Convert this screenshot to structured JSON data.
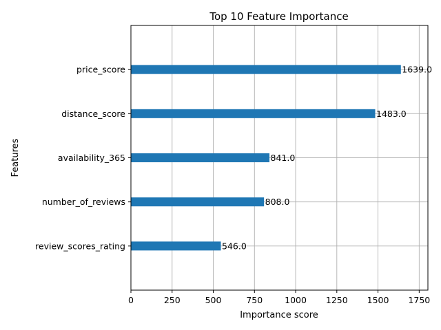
{
  "chart_data": {
    "type": "bar",
    "orientation": "horizontal",
    "title": "Top 10 Feature Importance",
    "xlabel": "Importance score",
    "ylabel": "Features",
    "categories": [
      "review_scores_rating",
      "number_of_reviews",
      "availability_365",
      "distance_score",
      "price_score"
    ],
    "values": [
      546.0,
      808.0,
      841.0,
      1483.0,
      1639.0
    ],
    "value_labels": [
      "546.0",
      "808.0",
      "841.0",
      "1483.0",
      "1639.0"
    ],
    "xticks": [
      0,
      250,
      500,
      750,
      1000,
      1250,
      1500,
      1750
    ],
    "xtick_labels": [
      "0",
      "250",
      "500",
      "750",
      "1000",
      "1250",
      "1500",
      "1750"
    ],
    "xlim": [
      0,
      1803
    ],
    "grid": true,
    "bar_color": "#1f77b4"
  }
}
